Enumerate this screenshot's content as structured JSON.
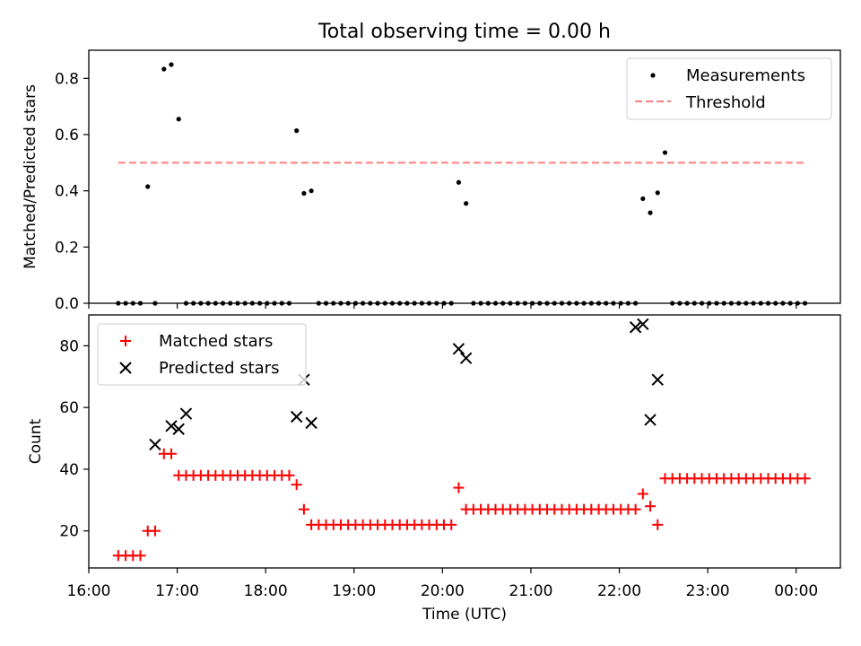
{
  "chart_data": [
    {
      "type": "scatter",
      "title": "Total observing time = 0.00 h",
      "xlabel": "",
      "ylabel": "Matched/Predicted stars",
      "xlim": [
        "16:00",
        "00:30"
      ],
      "ylim": [
        0,
        0.9
      ],
      "yticks": [
        "0.0",
        "0.2",
        "0.4",
        "0.6",
        "0.8"
      ],
      "legend_position": "top-right",
      "series": [
        {
          "name": "Measurements",
          "color": "#000000",
          "marker": "dot",
          "x": [
            "16:20",
            "16:25",
            "16:30",
            "16:35",
            "16:40",
            "16:45",
            "16:51",
            "16:56",
            "17:01",
            "17:06",
            "17:11",
            "17:16",
            "17:21",
            "17:26",
            "17:31",
            "17:36",
            "17:41",
            "17:46",
            "17:51",
            "17:56",
            "18:01",
            "18:06",
            "18:11",
            "18:16",
            "18:21",
            "18:26",
            "18:31",
            "18:36",
            "18:41",
            "18:46",
            "18:51",
            "18:56",
            "19:01",
            "19:06",
            "19:11",
            "19:16",
            "19:21",
            "19:26",
            "19:31",
            "19:36",
            "19:41",
            "19:46",
            "19:51",
            "19:56",
            "20:01",
            "20:06",
            "20:11",
            "20:16",
            "20:21",
            "20:26",
            "20:31",
            "20:36",
            "20:41",
            "20:46",
            "20:51",
            "20:56",
            "21:01",
            "21:06",
            "21:11",
            "21:16",
            "21:21",
            "21:26",
            "21:31",
            "21:36",
            "21:41",
            "21:46",
            "21:51",
            "21:56",
            "22:01",
            "22:06",
            "22:11",
            "22:16",
            "22:21",
            "22:26",
            "22:31",
            "22:36",
            "22:41",
            "22:46",
            "22:51",
            "22:56",
            "23:01",
            "23:06",
            "23:11",
            "23:16",
            "23:21",
            "23:26",
            "23:31",
            "23:36",
            "23:41",
            "23:46",
            "23:51",
            "23:56",
            "00:01",
            "00:06"
          ],
          "y": [
            0,
            0,
            0,
            0,
            0.415,
            0,
            0.833,
            0.849,
            0.655,
            0,
            0,
            0,
            0,
            0,
            0,
            0,
            0,
            0,
            0,
            0,
            0,
            0,
            0,
            0,
            0.614,
            0.391,
            0.4,
            0,
            0,
            0,
            0,
            0,
            0,
            0,
            0,
            0,
            0,
            0,
            0,
            0,
            0,
            0,
            0,
            0,
            0,
            0,
            0.43,
            0.355,
            0,
            0,
            0,
            0,
            0,
            0,
            0,
            0,
            0,
            0,
            0,
            0,
            0,
            0,
            0,
            0,
            0,
            0,
            0,
            0,
            0,
            0,
            0,
            0.372,
            0.322,
            0.393,
            0.536,
            0,
            0,
            0,
            0,
            0,
            0,
            0,
            0,
            0,
            0,
            0,
            0,
            0,
            0,
            0,
            0,
            0,
            0,
            0
          ]
        },
        {
          "name": "Threshold",
          "color": "#ff7f7f",
          "style": "dashed",
          "x": [
            "16:20",
            "00:06"
          ],
          "y": [
            0.5,
            0.5
          ]
        }
      ]
    },
    {
      "type": "scatter",
      "title": "",
      "xlabel": "Time (UTC)",
      "ylabel": "Count",
      "xlim": [
        "16:00",
        "00:30"
      ],
      "ylim": [
        8,
        90
      ],
      "xticks": [
        "16:00",
        "17:00",
        "18:00",
        "19:00",
        "20:00",
        "21:00",
        "22:00",
        "23:00",
        "00:00"
      ],
      "yticks": [
        "20",
        "40",
        "60",
        "80"
      ],
      "legend_position": "top-left",
      "series": [
        {
          "name": "Matched stars",
          "color": "#ff0000",
          "marker": "plus",
          "x": [
            "16:20",
            "16:25",
            "16:30",
            "16:35",
            "16:40",
            "16:45",
            "16:51",
            "16:56",
            "17:01",
            "17:06",
            "17:11",
            "17:16",
            "17:21",
            "17:26",
            "17:31",
            "17:36",
            "17:41",
            "17:46",
            "17:51",
            "17:56",
            "18:01",
            "18:06",
            "18:11",
            "18:16",
            "18:21",
            "18:26",
            "18:31",
            "18:36",
            "18:41",
            "18:46",
            "18:51",
            "18:56",
            "19:01",
            "19:06",
            "19:11",
            "19:16",
            "19:21",
            "19:26",
            "19:31",
            "19:36",
            "19:41",
            "19:46",
            "19:51",
            "19:56",
            "20:01",
            "20:06",
            "20:11",
            "20:16",
            "20:21",
            "20:26",
            "20:31",
            "20:36",
            "20:41",
            "20:46",
            "20:51",
            "20:56",
            "21:01",
            "21:06",
            "21:11",
            "21:16",
            "21:21",
            "21:26",
            "21:31",
            "21:36",
            "21:41",
            "21:46",
            "21:51",
            "21:56",
            "22:01",
            "22:06",
            "22:11",
            "22:16",
            "22:21",
            "22:26",
            "22:31",
            "22:36",
            "22:41",
            "22:46",
            "22:51",
            "22:56",
            "23:01",
            "23:06",
            "23:11",
            "23:16",
            "23:21",
            "23:26",
            "23:31",
            "23:36",
            "23:41",
            "23:46",
            "23:51",
            "23:56",
            "00:01",
            "00:06"
          ],
          "y": [
            12,
            12,
            12,
            12,
            20,
            20,
            45,
            45,
            38,
            38,
            38,
            38,
            38,
            38,
            38,
            38,
            38,
            38,
            38,
            38,
            38,
            38,
            38,
            38,
            35,
            27,
            22,
            22,
            22,
            22,
            22,
            22,
            22,
            22,
            22,
            22,
            22,
            22,
            22,
            22,
            22,
            22,
            22,
            22,
            22,
            22,
            34,
            27,
            27,
            27,
            27,
            27,
            27,
            27,
            27,
            27,
            27,
            27,
            27,
            27,
            27,
            27,
            27,
            27,
            27,
            27,
            27,
            27,
            27,
            27,
            27,
            32,
            28,
            22,
            37,
            37,
            37,
            37,
            37,
            37,
            37,
            37,
            37,
            37,
            37,
            37,
            37,
            37,
            37,
            37,
            37,
            37,
            37,
            37
          ]
        },
        {
          "name": "Predicted stars",
          "color": "#000000",
          "marker": "x",
          "x": [
            "16:45",
            "16:56",
            "17:01",
            "17:06",
            "18:21",
            "18:26",
            "18:31",
            "20:11",
            "20:16",
            "22:11",
            "22:16",
            "22:21",
            "22:26"
          ],
          "y": [
            48,
            54,
            53,
            58,
            57,
            69,
            55,
            79,
            76,
            86,
            87,
            56,
            69
          ]
        }
      ]
    }
  ]
}
